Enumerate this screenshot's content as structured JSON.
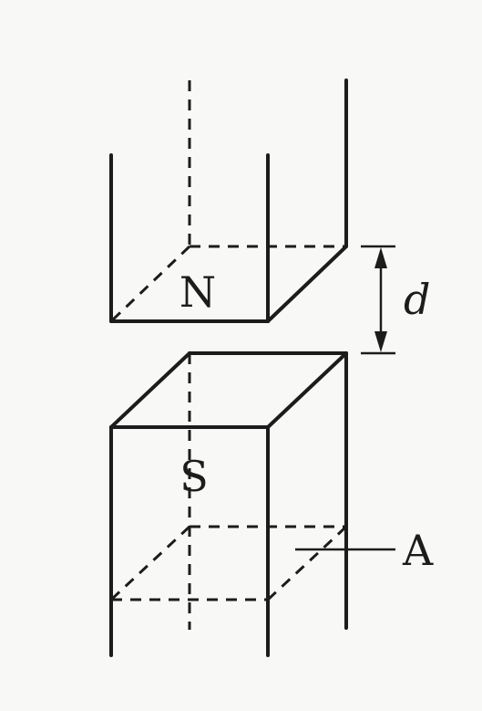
{
  "labels": {
    "north": "N",
    "south": "S",
    "gap": "d",
    "area": "A"
  }
}
